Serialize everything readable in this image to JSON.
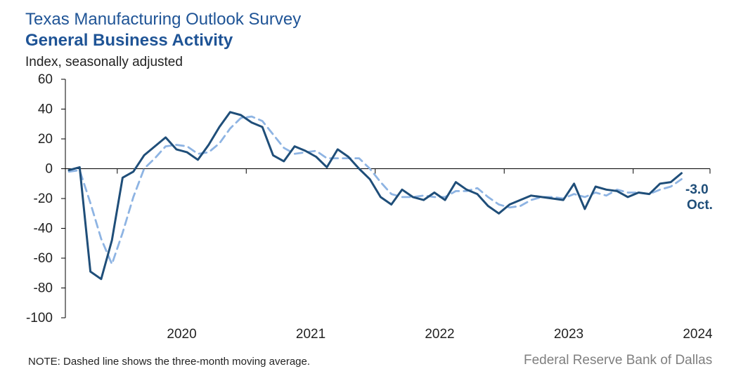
{
  "chart_data": {
    "type": "line",
    "title": "Texas Manufacturing Outlook Survey",
    "subtitle": "General Business Activity",
    "ylabel": "Index, seasonally adjusted",
    "ylim": [
      -100,
      60
    ],
    "yticks": [
      60,
      40,
      20,
      0,
      -20,
      -40,
      -60,
      -80,
      -100
    ],
    "xticks": [
      "2020",
      "2021",
      "2022",
      "2023",
      "2024"
    ],
    "x_start": "2019-08",
    "series": [
      {
        "name": "General Business Activity index",
        "style": "solid",
        "color": "#1f4e79",
        "values": [
          -1,
          1,
          -69,
          -74,
          -48,
          -6,
          -2,
          9,
          15,
          21,
          13,
          11,
          6,
          16,
          28,
          38,
          36,
          31,
          28,
          9,
          5,
          15,
          12,
          8,
          1,
          13,
          8,
          0,
          -7,
          -19,
          -24,
          -14,
          -19,
          -21,
          -16,
          -21,
          -9,
          -14,
          -17,
          -25,
          -30,
          -24,
          -21,
          -18,
          -19,
          -20,
          -21,
          -10,
          -27,
          -12,
          -14,
          -15,
          -19,
          -16,
          -17,
          -10,
          -9,
          -3
        ]
      },
      {
        "name": "Three-month moving average",
        "style": "dashed",
        "color": "#8eb4e3",
        "values": [
          -2,
          -1,
          -23,
          -47,
          -64,
          -43,
          -19,
          0,
          7,
          15,
          16,
          15,
          10,
          11,
          17,
          27,
          34,
          35,
          32,
          23,
          14,
          10,
          11,
          12,
          7,
          7,
          7,
          7,
          0,
          -9,
          -17,
          -19,
          -19,
          -18,
          -19,
          -19,
          -15,
          -15,
          -13,
          -19,
          -24,
          -26,
          -25,
          -21,
          -19,
          -19,
          -20,
          -17,
          -19,
          -16,
          -18,
          -14,
          -16,
          -16,
          -17,
          -14,
          -12,
          -7
        ]
      }
    ],
    "annotation": {
      "value_label": "-3.0",
      "period_label": "Oct."
    },
    "note": "NOTE: Dashed line shows the three-month  moving average.",
    "source": "Federal Reserve Bank of Dallas"
  },
  "colors": {
    "title": "#1f5496",
    "solid": "#1f4e79",
    "dashed": "#8eb4e3"
  }
}
